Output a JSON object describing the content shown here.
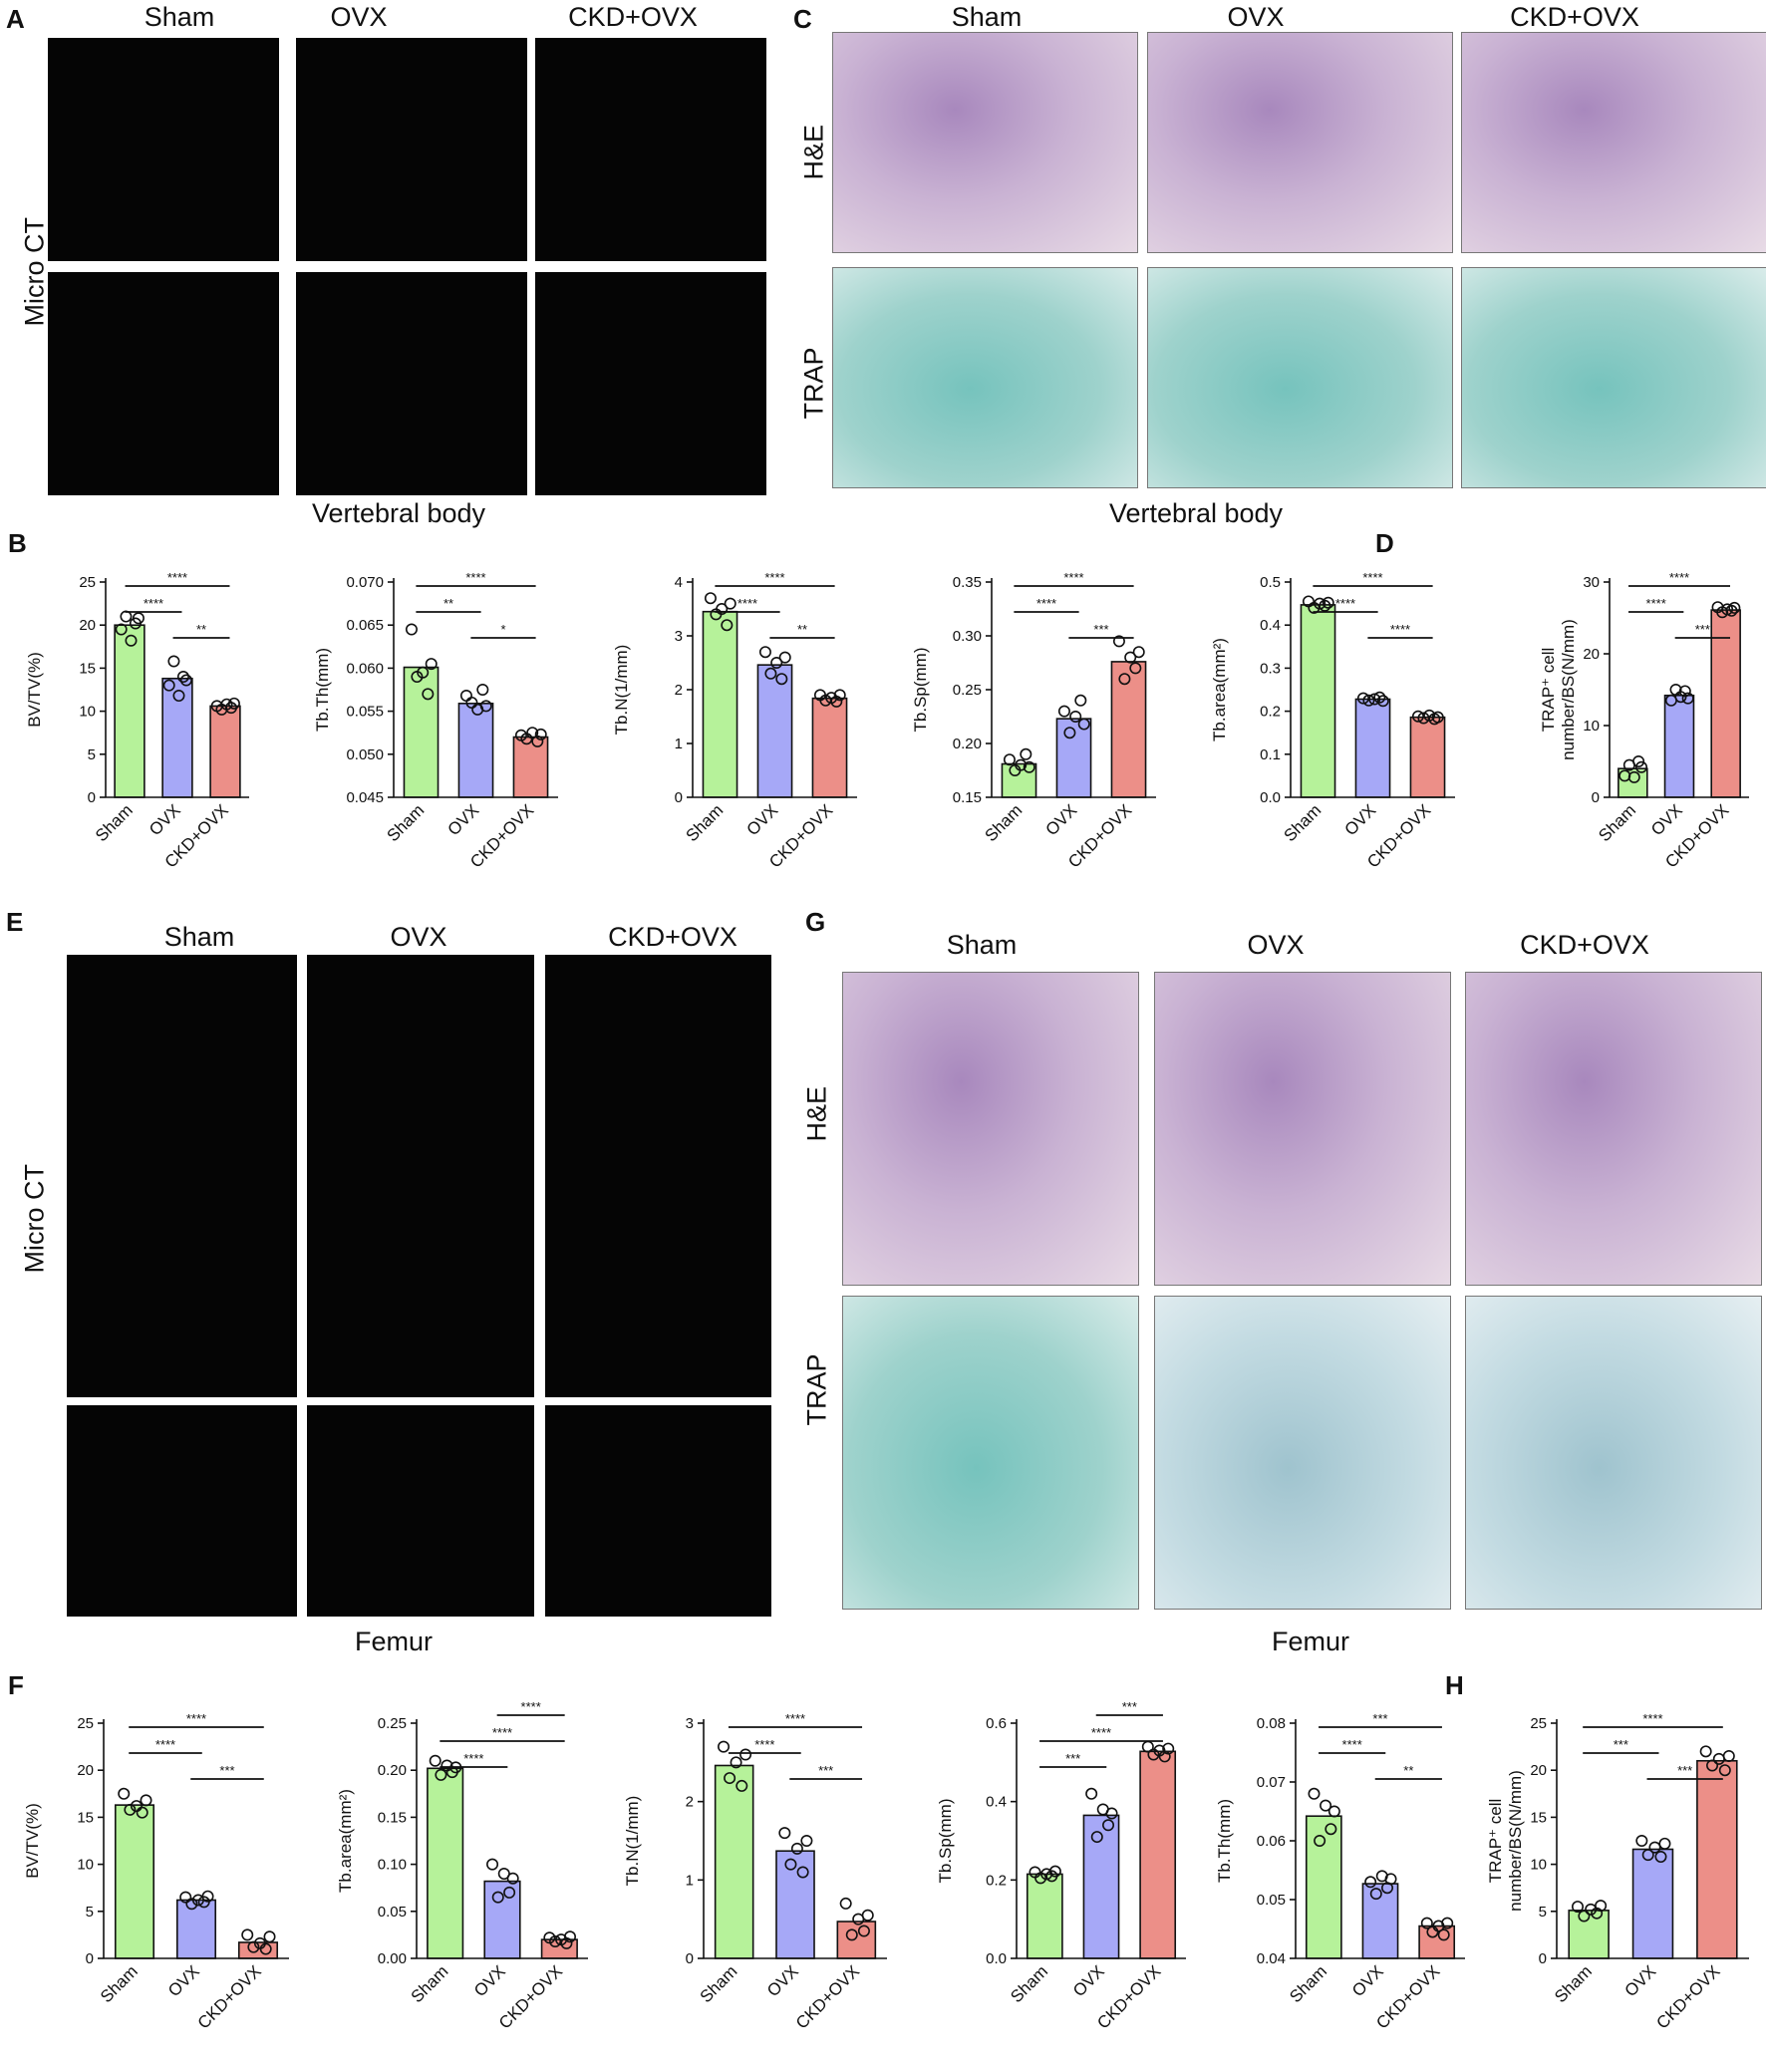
{
  "panels": {
    "A": {
      "letter": "A",
      "columns": [
        "Sham",
        "OVX",
        "CKD+OVX"
      ],
      "row_label": "Micro CT",
      "caption": "Vertebral body"
    },
    "C": {
      "letter": "C",
      "columns": [
        "Sham",
        "OVX",
        "CKD+OVX"
      ],
      "rows": [
        "H&E",
        "TRAP"
      ],
      "caption": "Vertebral body"
    },
    "E": {
      "letter": "E",
      "columns": [
        "Sham",
        "OVX",
        "CKD+OVX"
      ],
      "row_label": "Micro CT",
      "caption": "Femur"
    },
    "G": {
      "letter": "G",
      "columns": [
        "Sham",
        "OVX",
        "CKD+OVX"
      ],
      "rows": [
        "H&E",
        "TRAP"
      ],
      "caption": "Femur"
    },
    "B": {
      "letter": "B"
    },
    "D": {
      "letter": "D"
    },
    "F": {
      "letter": "F"
    },
    "H": {
      "letter": "H"
    }
  },
  "colors": {
    "sham": "#b6f29a",
    "ovx": "#a6a8f7",
    "ckd_ovx": "#ec8f88",
    "he": "#c9b2d3",
    "trap": "#9ed2cc"
  },
  "chart_data": [
    {
      "id": "B1",
      "type": "bar",
      "categories": [
        "Sham",
        "OVX",
        "CKD+OVX"
      ],
      "values": [
        20.0,
        13.8,
        10.6
      ],
      "points": [
        [
          19.5,
          21.0,
          18.2,
          20.2,
          20.8
        ],
        [
          13.0,
          15.8,
          11.8,
          14.0,
          13.6
        ],
        [
          10.6,
          10.2,
          10.8,
          10.4,
          10.9
        ]
      ],
      "ylabel": "BV/TV(%)",
      "ylim": [
        0,
        25
      ],
      "yticks": [
        "0",
        "5",
        "10",
        "15",
        "20",
        "25"
      ],
      "sig": [
        {
          "from": 0,
          "to": 2,
          "label": "****"
        },
        {
          "from": 0,
          "to": 1,
          "label": "****"
        },
        {
          "from": 1,
          "to": 2,
          "label": "**"
        }
      ]
    },
    {
      "id": "B2",
      "type": "bar",
      "categories": [
        "Sham",
        "OVX",
        "CKD+OVX"
      ],
      "values": [
        0.0601,
        0.0559,
        0.052
      ],
      "points": [
        [
          0.0645,
          0.059,
          0.0595,
          0.057,
          0.0605
        ],
        [
          0.0568,
          0.056,
          0.0552,
          0.0575,
          0.0556
        ],
        [
          0.0522,
          0.0518,
          0.0525,
          0.0515,
          0.0523
        ]
      ],
      "ylabel": "Tb.Th(mm)",
      "ylim": [
        0.045,
        0.07
      ],
      "yticks": [
        "0.045",
        "0.050",
        "0.055",
        "0.060",
        "0.065",
        "0.070"
      ],
      "sig": [
        {
          "from": 0,
          "to": 2,
          "label": "****"
        },
        {
          "from": 0,
          "to": 1,
          "label": "**"
        },
        {
          "from": 1,
          "to": 2,
          "label": "*"
        }
      ]
    },
    {
      "id": "B3",
      "type": "bar",
      "categories": [
        "Sham",
        "OVX",
        "CKD+OVX"
      ],
      "values": [
        3.45,
        2.46,
        1.84
      ],
      "points": [
        [
          3.7,
          3.4,
          3.5,
          3.2,
          3.6
        ],
        [
          2.7,
          2.3,
          2.5,
          2.2,
          2.6
        ],
        [
          1.9,
          1.8,
          1.85,
          1.78,
          1.9
        ]
      ],
      "ylabel": "Tb.N(1/mm)",
      "ylim": [
        0,
        4
      ],
      "yticks": [
        "0",
        "1",
        "2",
        "3",
        "4"
      ],
      "sig": [
        {
          "from": 0,
          "to": 2,
          "label": "****"
        },
        {
          "from": 0,
          "to": 1,
          "label": "****"
        },
        {
          "from": 1,
          "to": 2,
          "label": "**"
        }
      ]
    },
    {
      "id": "B4",
      "type": "bar",
      "categories": [
        "Sham",
        "OVX",
        "CKD+OVX"
      ],
      "values": [
        0.181,
        0.223,
        0.276
      ],
      "points": [
        [
          0.185,
          0.175,
          0.18,
          0.19,
          0.178
        ],
        [
          0.23,
          0.21,
          0.225,
          0.24,
          0.218
        ],
        [
          0.295,
          0.26,
          0.28,
          0.27,
          0.285
        ]
      ],
      "ylabel": "Tb.Sp(mm)",
      "ylim": [
        0.15,
        0.35
      ],
      "yticks": [
        "0.15",
        "0.20",
        "0.25",
        "0.30",
        "0.35"
      ],
      "sig": [
        {
          "from": 0,
          "to": 2,
          "label": "****"
        },
        {
          "from": 0,
          "to": 1,
          "label": "****"
        },
        {
          "from": 1,
          "to": 2,
          "label": "***"
        }
      ]
    },
    {
      "id": "B5",
      "type": "bar",
      "categories": [
        "Sham",
        "OVX",
        "CKD+OVX"
      ],
      "values": [
        0.447,
        0.228,
        0.186
      ],
      "points": [
        [
          0.455,
          0.44,
          0.45,
          0.445,
          0.452
        ],
        [
          0.23,
          0.225,
          0.228,
          0.232,
          0.224
        ],
        [
          0.188,
          0.184,
          0.19,
          0.182,
          0.186
        ]
      ],
      "ylabel": "Tb.area(mm²)",
      "ylim": [
        0,
        0.5
      ],
      "yticks": [
        "0.0",
        "0.1",
        "0.2",
        "0.3",
        "0.4",
        "0.5"
      ],
      "sig": [
        {
          "from": 0,
          "to": 2,
          "label": "****"
        },
        {
          "from": 0,
          "to": 1,
          "label": "****"
        },
        {
          "from": 1,
          "to": 2,
          "label": "****"
        }
      ]
    },
    {
      "id": "D",
      "type": "bar",
      "categories": [
        "Sham",
        "OVX",
        "CKD+OVX"
      ],
      "values": [
        4.0,
        14.2,
        26.1
      ],
      "points": [
        [
          3.0,
          4.5,
          2.8,
          5.0,
          4.2
        ],
        [
          13.5,
          15.0,
          14.0,
          14.8,
          13.8
        ],
        [
          26.5,
          25.8,
          26.2,
          26.0,
          26.4
        ]
      ],
      "ylabel": "TRAP⁺ cell number/BS(N/mm)",
      "ylim": [
        0,
        30
      ],
      "yticks": [
        "0",
        "10",
        "20",
        "30"
      ],
      "sig": [
        {
          "from": 0,
          "to": 2,
          "label": "****"
        },
        {
          "from": 0,
          "to": 1,
          "label": "****"
        },
        {
          "from": 1,
          "to": 2,
          "label": "***"
        }
      ]
    },
    {
      "id": "F1",
      "type": "bar",
      "categories": [
        "Sham",
        "OVX",
        "CKD+OVX"
      ],
      "values": [
        16.3,
        6.2,
        1.7
      ],
      "points": [
        [
          17.5,
          15.8,
          16.2,
          15.5,
          16.8
        ],
        [
          6.5,
          5.8,
          6.2,
          6.0,
          6.6
        ],
        [
          2.5,
          1.2,
          1.6,
          1.0,
          2.3
        ]
      ],
      "ylabel": "BV/TV(%)",
      "ylim": [
        0,
        25
      ],
      "yticks": [
        "0",
        "5",
        "10",
        "15",
        "20",
        "25"
      ],
      "sig": [
        {
          "from": 0,
          "to": 2,
          "label": "****"
        },
        {
          "from": 0,
          "to": 1,
          "label": "****"
        },
        {
          "from": 1,
          "to": 2,
          "label": "***"
        }
      ]
    },
    {
      "id": "F2",
      "type": "bar",
      "categories": [
        "Sham",
        "OVX",
        "CKD+OVX"
      ],
      "values": [
        0.202,
        0.082,
        0.02
      ],
      "points": [
        [
          0.21,
          0.195,
          0.205,
          0.198,
          0.203
        ],
        [
          0.1,
          0.065,
          0.09,
          0.07,
          0.085
        ],
        [
          0.022,
          0.018,
          0.02,
          0.016,
          0.023
        ]
      ],
      "ylabel": "Tb.area(mm²)",
      "ylim": [
        0,
        0.25
      ],
      "yticks": [
        "0.00",
        "0.05",
        "0.10",
        "0.15",
        "0.20",
        "0.25"
      ],
      "sig": [
        {
          "from": 1,
          "to": 2,
          "label": "****"
        },
        {
          "from": 0,
          "to": 2,
          "label": "****"
        },
        {
          "from": 0,
          "to": 1,
          "label": "****"
        }
      ]
    },
    {
      "id": "F3",
      "type": "bar",
      "categories": [
        "Sham",
        "OVX",
        "CKD+OVX"
      ],
      "values": [
        2.46,
        1.37,
        0.47
      ],
      "points": [
        [
          2.7,
          2.3,
          2.5,
          2.2,
          2.6
        ],
        [
          1.6,
          1.2,
          1.4,
          1.1,
          1.5
        ],
        [
          0.7,
          0.3,
          0.5,
          0.35,
          0.55
        ]
      ],
      "ylabel": "Tb.N(1/mm)",
      "ylim": [
        0,
        3
      ],
      "yticks": [
        "0",
        "1",
        "2",
        "3"
      ],
      "sig": [
        {
          "from": 0,
          "to": 2,
          "label": "****"
        },
        {
          "from": 0,
          "to": 1,
          "label": "****"
        },
        {
          "from": 1,
          "to": 2,
          "label": "***"
        }
      ]
    },
    {
      "id": "F4",
      "type": "bar",
      "categories": [
        "Sham",
        "OVX",
        "CKD+OVX"
      ],
      "values": [
        0.215,
        0.365,
        0.528
      ],
      "points": [
        [
          0.22,
          0.205,
          0.215,
          0.21,
          0.222
        ],
        [
          0.42,
          0.31,
          0.38,
          0.34,
          0.37
        ],
        [
          0.54,
          0.52,
          0.53,
          0.515,
          0.535
        ]
      ],
      "ylabel": "Tb.Sp(mm)",
      "ylim": [
        0,
        0.6
      ],
      "yticks": [
        "0.0",
        "0.2",
        "0.4",
        "0.6"
      ],
      "sig": [
        {
          "from": 1,
          "to": 2,
          "label": "***"
        },
        {
          "from": 0,
          "to": 2,
          "label": "****"
        },
        {
          "from": 0,
          "to": 1,
          "label": "***"
        }
      ]
    },
    {
      "id": "F5",
      "type": "bar",
      "categories": [
        "Sham",
        "OVX",
        "CKD+OVX"
      ],
      "values": [
        0.0642,
        0.0527,
        0.0455
      ],
      "points": [
        [
          0.068,
          0.06,
          0.066,
          0.062,
          0.065
        ],
        [
          0.053,
          0.051,
          0.054,
          0.052,
          0.0535
        ],
        [
          0.046,
          0.0445,
          0.0455,
          0.044,
          0.046
        ]
      ],
      "ylabel": "Tb.Th(mm)",
      "ylim": [
        0.04,
        0.08
      ],
      "yticks": [
        "0.04",
        "0.05",
        "0.06",
        "0.07",
        "0.08"
      ],
      "sig": [
        {
          "from": 0,
          "to": 2,
          "label": "***"
        },
        {
          "from": 0,
          "to": 1,
          "label": "****"
        },
        {
          "from": 1,
          "to": 2,
          "label": "**"
        }
      ]
    },
    {
      "id": "H",
      "type": "bar",
      "categories": [
        "Sham",
        "OVX",
        "CKD+OVX"
      ],
      "values": [
        5.1,
        11.6,
        21.0
      ],
      "points": [
        [
          5.5,
          4.5,
          5.2,
          4.8,
          5.6
        ],
        [
          12.5,
          11.0,
          11.8,
          10.8,
          12.2
        ],
        [
          22.0,
          20.5,
          21.2,
          20.0,
          21.5
        ]
      ],
      "ylabel": "TRAP⁺ cell number/BS(N/mm)",
      "ylim": [
        0,
        25
      ],
      "yticks": [
        "0",
        "5",
        "10",
        "15",
        "20",
        "25"
      ],
      "sig": [
        {
          "from": 0,
          "to": 1,
          "label": "***"
        },
        {
          "from": 0,
          "to": 2,
          "label": "****"
        },
        {
          "from": 1,
          "to": 2,
          "label": "***"
        }
      ]
    }
  ]
}
